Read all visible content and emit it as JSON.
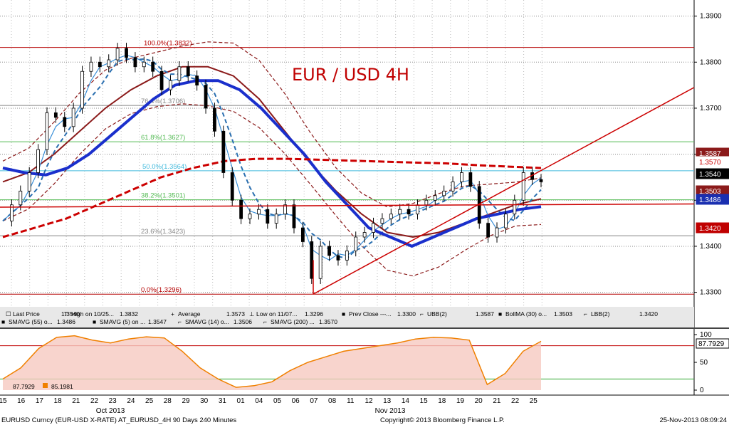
{
  "chart_data": [
    {
      "type": "line",
      "title": "EUR / USD 4H",
      "y_ticks": [
        "1.3300",
        "1.3400",
        "1.3500",
        "1.3600",
        "1.3700",
        "1.3800",
        "1.3900"
      ],
      "ylim": [
        1.327,
        1.3935
      ],
      "x_labels": [
        "15",
        "16",
        "17",
        "18",
        "21",
        "22",
        "23",
        "24",
        "25",
        "28",
        "29",
        "30",
        "31",
        "01",
        "04",
        "05",
        "06",
        "07",
        "08",
        "11",
        "12",
        "13",
        "14",
        "15",
        "18",
        "19",
        "20",
        "21",
        "22",
        "25"
      ],
      "month_labels": [
        "Oct 2013",
        "Nov 2013"
      ],
      "fib_levels": [
        {
          "label": "100.0%(1.3832)",
          "value": 1.3832,
          "color": "#b40000"
        },
        {
          "label": "76.4%(1.3706)",
          "value": 1.3706,
          "color": "#888888"
        },
        {
          "label": "61.8%(1.3627)",
          "value": 1.3627,
          "color": "#55bb55"
        },
        {
          "label": "50.0%(1.3564)",
          "value": 1.3564,
          "color": "#44bbdd"
        },
        {
          "label": "38.2%(1.3501)",
          "value": 1.3501,
          "color": "#55bb55"
        },
        {
          "label": "23.6%(1.3423)",
          "value": 1.3423,
          "color": "#888888"
        },
        {
          "label": "0.0%(1.3296)",
          "value": 1.3296,
          "color": "#b40000"
        }
      ],
      "price_tags": [
        {
          "label": "1.3587",
          "value": 1.3587,
          "bg": "#8b1a1a",
          "fg": "#ffffff"
        },
        {
          "label": "1.3570",
          "value": 1.357,
          "bg": "#ffffff",
          "fg": "#cc0000"
        },
        {
          "label": "1.3540",
          "value": 1.354,
          "bg": "#000000",
          "fg": "#ffffff"
        },
        {
          "label": "1.3503",
          "value": 1.3503,
          "bg": "#8b1a1a",
          "fg": "#ffffff"
        },
        {
          "label": "1.3486",
          "value": 1.3486,
          "bg": "#1a2fb0",
          "fg": "#ffffff"
        },
        {
          "label": "1.3420",
          "value": 1.342,
          "bg": "#c00000",
          "fg": "#ffffff"
        }
      ],
      "last_price": [
        1.3455,
        1.349,
        1.352,
        1.356,
        1.361,
        1.369,
        1.368,
        1.366,
        1.37,
        1.378,
        1.38,
        1.379,
        1.3805,
        1.383,
        1.381,
        1.379,
        1.38,
        1.378,
        1.374,
        1.376,
        1.379,
        1.377,
        1.375,
        1.37,
        1.365,
        1.356,
        1.35,
        1.346,
        1.347,
        1.348,
        1.345,
        1.347,
        1.349,
        1.344,
        1.341,
        1.333,
        1.34,
        1.338,
        1.337,
        1.339,
        1.342,
        1.343,
        1.345,
        1.346,
        1.347,
        1.348,
        1.347,
        1.349,
        1.35,
        1.351,
        1.352,
        1.354,
        1.356,
        1.353,
        1.345,
        1.342,
        1.344,
        1.347,
        1.35,
        1.356,
        1.3545,
        1.354
      ],
      "series": [
        {
          "name": "Last Price",
          "value": "1.3540",
          "color": "#000000"
        },
        {
          "name": "High on 10/25...",
          "value": "1.3832",
          "color": "#000000"
        },
        {
          "name": "Average",
          "value": "1.3573",
          "color": "#000000"
        },
        {
          "name": "Low on 11/07...",
          "value": "1.3296",
          "color": "#000000"
        },
        {
          "name": "Prev Close ---...",
          "value": "1.3300",
          "color": "#f08000"
        },
        {
          "name": "UBB(2)",
          "value": "1.3587",
          "color": "#8b1a1a"
        },
        {
          "name": "BollMA (30) o...",
          "value": "1.3503",
          "color": "#8b1a1a"
        },
        {
          "name": "LBB(2)",
          "value": "1.3420",
          "color": "#8b1a1a"
        },
        {
          "name": "SMAVG (55) o...",
          "value": "1.3486",
          "color": "#1a2fcc"
        },
        {
          "name": "SMAVG (5) on ...",
          "value": "1.3547",
          "color": "#3a8fd8"
        },
        {
          "name": "SMAVG (14) o...",
          "value": "1.3506",
          "color": "#2a6fb0"
        },
        {
          "name": "SMAVG (200) ...",
          "value": "1.3570",
          "color": "#cc0000"
        }
      ],
      "sma55": [
        1.357,
        1.356,
        1.3555,
        1.357,
        1.36,
        1.364,
        1.368,
        1.372,
        1.375,
        1.376,
        1.376,
        1.374,
        1.37,
        1.365,
        1.36,
        1.354,
        1.349,
        1.344,
        1.342,
        1.34,
        1.342,
        1.344,
        1.346,
        1.347,
        1.348,
        1.3486
      ],
      "sma200": [
        1.342,
        1.344,
        1.346,
        1.349,
        1.352,
        1.355,
        1.357,
        1.3585,
        1.359,
        1.359,
        1.3588,
        1.3586,
        1.3584,
        1.3582,
        1.358,
        1.3576,
        1.3573,
        1.357
      ],
      "bollma": [
        1.354,
        1.356,
        1.36,
        1.365,
        1.37,
        1.374,
        1.377,
        1.379,
        1.379,
        1.377,
        1.372,
        1.365,
        1.358,
        1.352,
        1.347,
        1.343,
        1.342,
        1.343,
        1.345,
        1.347,
        1.349,
        1.3503
      ]
    },
    {
      "type": "area",
      "y_ticks": [
        "100",
        "50",
        "0"
      ],
      "ylim": [
        0,
        100
      ],
      "series": [
        {
          "name": "Stoch K",
          "value": "87.7929",
          "color": "#f08000"
        },
        {
          "name": "Stoch D",
          "value": "85.1981",
          "color": "#f08000"
        }
      ],
      "tag": {
        "label": "87.7929"
      },
      "values": [
        20,
        40,
        75,
        95,
        98,
        90,
        85,
        92,
        96,
        94,
        70,
        40,
        20,
        5,
        8,
        15,
        35,
        50,
        60,
        70,
        75,
        80,
        85,
        92,
        95,
        94,
        90,
        10,
        30,
        70,
        88
      ]
    }
  ],
  "legend_rows": [
    [
      {
        "icon": "☐",
        "color": "#000000",
        "text": "Last Price",
        "value": "1.3540"
      },
      {
        "icon": "T",
        "color": "#000000",
        "text": "High on 10/25...",
        "value": "1.3832"
      },
      {
        "icon": "+",
        "color": "#000000",
        "text": "Average",
        "value": "1.3573"
      },
      {
        "icon": "⊥",
        "color": "#000000",
        "text": "Low on 11/07...",
        "value": "1.3296"
      },
      {
        "icon": "■",
        "color": "#f08000",
        "text": "Prev Close ---...",
        "value": "1.3300"
      },
      {
        "icon": "⌐",
        "color": "#8b1a1a",
        "text": "UBB(2)",
        "value": "1.3587"
      },
      {
        "icon": "■",
        "color": "#8b1a1a",
        "text": "BollMA (30) o...",
        "value": "1.3503"
      },
      {
        "icon": "⌐",
        "color": "#8b1a1a",
        "text": "LBB(2)",
        "value": "1.3420"
      }
    ],
    [
      {
        "icon": "■",
        "color": "#1a2fcc",
        "text": "SMAVG (55) o...",
        "value": "1.3486"
      },
      {
        "icon": "■",
        "color": "#3a8fd8",
        "text": "SMAVG (5) on ...",
        "value": "1.3547"
      },
      {
        "icon": "⌐",
        "color": "#2a6fb0",
        "text": "SMAVG (14) o...",
        "value": "1.3506"
      },
      {
        "icon": "⌐",
        "color": "#cc0000",
        "text": "SMAVG (200) ...",
        "value": "1.3570"
      }
    ]
  ],
  "footer": {
    "left": "EURUSD Curncy (EUR-USD X-RATE) AT_EURUSD_4H 90 Days 240 Minutes",
    "center": "Copyright© 2013 Bloomberg Finance L.P.",
    "right": "25-Nov-2013 08:09:24"
  },
  "colors": {
    "price": "#000000",
    "sma55": "#1a2fcc",
    "sma200": "#cc0000",
    "bollma": "#8b1a1a",
    "bands": "#8b1a1a",
    "sma5": "#3a8fd8",
    "sma14": "#2a6fb0",
    "trend": "#cc0000",
    "stoch": "#f08000"
  }
}
